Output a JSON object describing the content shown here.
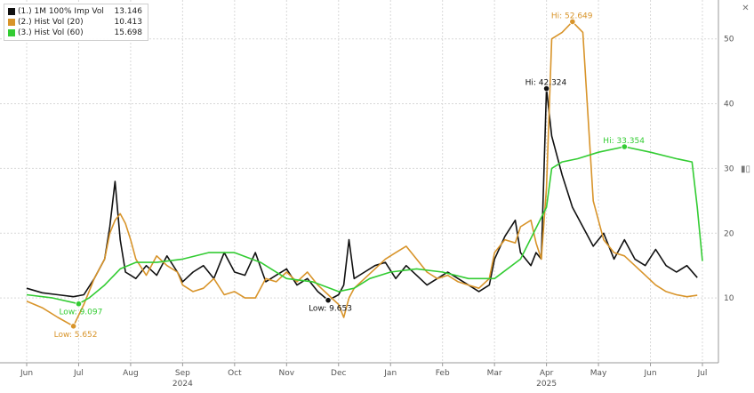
{
  "legend": [
    {
      "label": "(1.) 1M 100% Imp Vol",
      "value": "13.146",
      "color": "#111111"
    },
    {
      "label": "(2.) Hist Vol (20)",
      "value": "10.413",
      "color": "#d8942a"
    },
    {
      "label": "(3.) Hist Vol (60)",
      "value": "15.698",
      "color": "#33cc33"
    }
  ],
  "icons": {
    "close": "close-icon",
    "settings": "bars-icon",
    "expand": "arrow-icon"
  },
  "chart_data": {
    "type": "line",
    "x_months": [
      "Jun",
      "Jul",
      "Aug",
      "Sep",
      "Oct",
      "Nov",
      "Dec",
      "Jan",
      "Feb",
      "Mar",
      "Apr",
      "May",
      "Jun",
      "Jul"
    ],
    "x_years": [
      {
        "label": "2024",
        "under": "Sep"
      },
      {
        "label": "2025",
        "under": "Apr"
      }
    ],
    "ylim": [
      0,
      56
    ],
    "yticks": [
      10,
      20,
      30,
      40,
      50
    ],
    "grid": true,
    "legend_position": "top-left",
    "series": [
      {
        "name": "(1.) 1M 100% Imp Vol",
        "color": "#111111",
        "x": [
          0,
          0.3,
          0.6,
          0.9,
          1.1,
          1.3,
          1.5,
          1.6,
          1.7,
          1.8,
          1.9,
          2.0,
          2.1,
          2.3,
          2.5,
          2.7,
          2.9,
          3.0,
          3.2,
          3.4,
          3.6,
          3.8,
          4.0,
          4.2,
          4.4,
          4.6,
          4.8,
          5.0,
          5.2,
          5.4,
          5.6,
          5.8,
          6.0,
          6.1,
          6.2,
          6.3,
          6.5,
          6.7,
          6.9,
          7.1,
          7.3,
          7.5,
          7.7,
          7.9,
          8.1,
          8.3,
          8.5,
          8.7,
          8.9,
          9.0,
          9.2,
          9.4,
          9.5,
          9.7,
          9.8,
          9.9,
          10.0,
          10.1,
          10.3,
          10.5,
          10.7,
          10.9,
          11.1,
          11.3,
          11.5,
          11.7,
          11.9,
          12.1,
          12.3,
          12.5,
          12.7,
          12.9
        ],
        "y": [
          11.5,
          10.8,
          10.5,
          10.2,
          10.5,
          13,
          16,
          21,
          28,
          19,
          14,
          13.5,
          13,
          15,
          13.5,
          16.5,
          14,
          12.5,
          14,
          15,
          13,
          17,
          14,
          13.5,
          17,
          12.5,
          13.5,
          14.5,
          12,
          13,
          11,
          9.653,
          10.5,
          12,
          19,
          13,
          14,
          15,
          15.5,
          13,
          15,
          13.5,
          12,
          13,
          14,
          13,
          12,
          11,
          12,
          16,
          19.5,
          22,
          17,
          15,
          17,
          16,
          42.324,
          35,
          29,
          24,
          21,
          18,
          20,
          16,
          19,
          16,
          15,
          17.5,
          15,
          14,
          15,
          13.146
        ]
      },
      {
        "name": "(2.) Hist Vol (20)",
        "color": "#d8942a",
        "x": [
          0,
          0.3,
          0.6,
          0.9,
          1.1,
          1.3,
          1.5,
          1.6,
          1.7,
          1.8,
          1.9,
          2.0,
          2.1,
          2.3,
          2.5,
          2.7,
          2.9,
          3.0,
          3.2,
          3.4,
          3.6,
          3.8,
          4.0,
          4.2,
          4.4,
          4.6,
          4.8,
          5.0,
          5.2,
          5.4,
          5.6,
          5.8,
          6.0,
          6.1,
          6.2,
          6.3,
          6.5,
          6.7,
          6.9,
          7.1,
          7.3,
          7.5,
          7.7,
          7.9,
          8.1,
          8.3,
          8.5,
          8.7,
          8.9,
          9.0,
          9.2,
          9.4,
          9.5,
          9.7,
          9.8,
          9.9,
          10.0,
          10.1,
          10.3,
          10.5,
          10.7,
          10.9,
          11.1,
          11.3,
          11.5,
          11.7,
          11.9,
          12.1,
          12.3,
          12.5,
          12.7,
          12.9
        ],
        "y": [
          9.5,
          8.5,
          7.0,
          5.652,
          9.0,
          13.0,
          16.0,
          20.0,
          22.0,
          23.0,
          21.5,
          19.0,
          16.0,
          13.5,
          16.5,
          15.0,
          14.0,
          12.0,
          11.0,
          11.5,
          13.0,
          10.5,
          11.0,
          10.0,
          10.0,
          13.0,
          12.5,
          14.0,
          12.5,
          14.0,
          12.0,
          10.5,
          9.0,
          7.0,
          10.0,
          11.5,
          13.0,
          14.5,
          16.0,
          17.0,
          18.0,
          16.0,
          14.0,
          13.0,
          13.5,
          12.5,
          12.0,
          11.5,
          13.0,
          17.0,
          19.0,
          18.5,
          21.0,
          22.0,
          18.5,
          16.0,
          27.0,
          50.0,
          51.0,
          52.649,
          51.0,
          25.0,
          19.0,
          17.0,
          16.5,
          15.0,
          13.5,
          12.0,
          11.0,
          10.5,
          10.2,
          10.413
        ]
      },
      {
        "name": "(3.) Hist Vol (60)",
        "color": "#33cc33",
        "x": [
          0,
          0.5,
          1.0,
          1.2,
          1.5,
          1.8,
          2.1,
          2.5,
          3.0,
          3.5,
          4.0,
          4.5,
          5.0,
          5.5,
          6.0,
          6.3,
          6.6,
          7.0,
          7.5,
          8.0,
          8.5,
          9.0,
          9.5,
          10.0,
          10.1,
          10.3,
          10.6,
          11.0,
          11.5,
          12.0,
          12.5,
          12.8,
          12.9,
          13.0
        ],
        "y": [
          10.5,
          10.0,
          9.097,
          10.0,
          12.0,
          14.5,
          15.5,
          15.5,
          16.0,
          17.0,
          17.0,
          15.5,
          13.0,
          12.5,
          11.0,
          11.5,
          13.0,
          14.0,
          14.5,
          14.0,
          13.0,
          13.0,
          16.0,
          24.0,
          30.0,
          31.0,
          31.5,
          32.5,
          33.354,
          32.5,
          31.5,
          31.0,
          24.0,
          15.698
        ]
      }
    ],
    "annotations": [
      {
        "label": "Hi: 52.649",
        "series": 1,
        "x": 10.5,
        "y": 52.649,
        "color": "#d8942a"
      },
      {
        "label": "Hi: 42.324",
        "series": 0,
        "x": 10.0,
        "y": 42.324,
        "color": "#111111"
      },
      {
        "label": "Hi: 33.354",
        "series": 2,
        "x": 11.5,
        "y": 33.354,
        "color": "#33cc33"
      },
      {
        "label": "Low: 9.653",
        "series": 0,
        "x": 5.8,
        "y": 9.653,
        "color": "#111111"
      },
      {
        "label": "Low: 9.097",
        "series": 2,
        "x": 1.0,
        "y": 9.097,
        "color": "#33cc33"
      },
      {
        "label": "Low: 5.652",
        "series": 1,
        "x": 0.9,
        "y": 5.652,
        "color": "#d8942a"
      }
    ]
  }
}
